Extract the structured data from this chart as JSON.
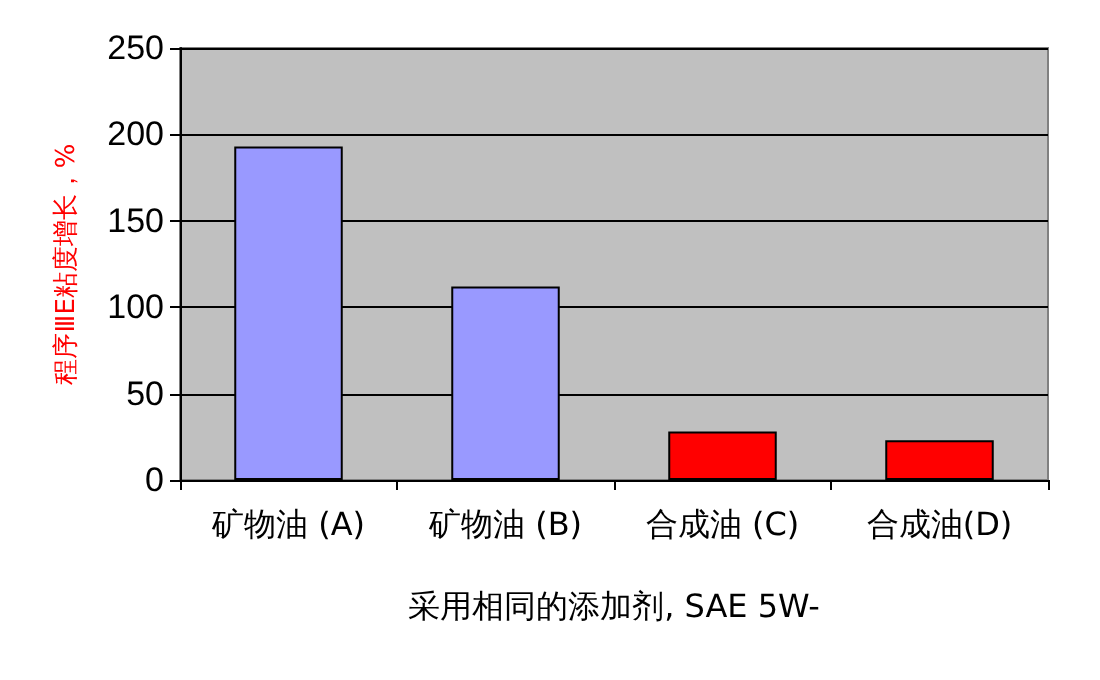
{
  "chart_data": {
    "type": "bar",
    "xlabel": "采用相同的添加剂, SAE 5W-",
    "ylabel": "程序ⅢE粘度增长，%",
    "categories": [
      "矿物油 (A)",
      "矿物油 (B)",
      "合成油 (C)",
      "合成油(D)"
    ],
    "values": [
      193,
      112,
      28,
      23
    ],
    "colors": [
      "#9999ff",
      "#9999ff",
      "#ff0000",
      "#ff0000"
    ],
    "ylim": [
      0,
      250
    ],
    "yticks": [
      0,
      50,
      100,
      150,
      200,
      250
    ],
    "grid": "y"
  }
}
